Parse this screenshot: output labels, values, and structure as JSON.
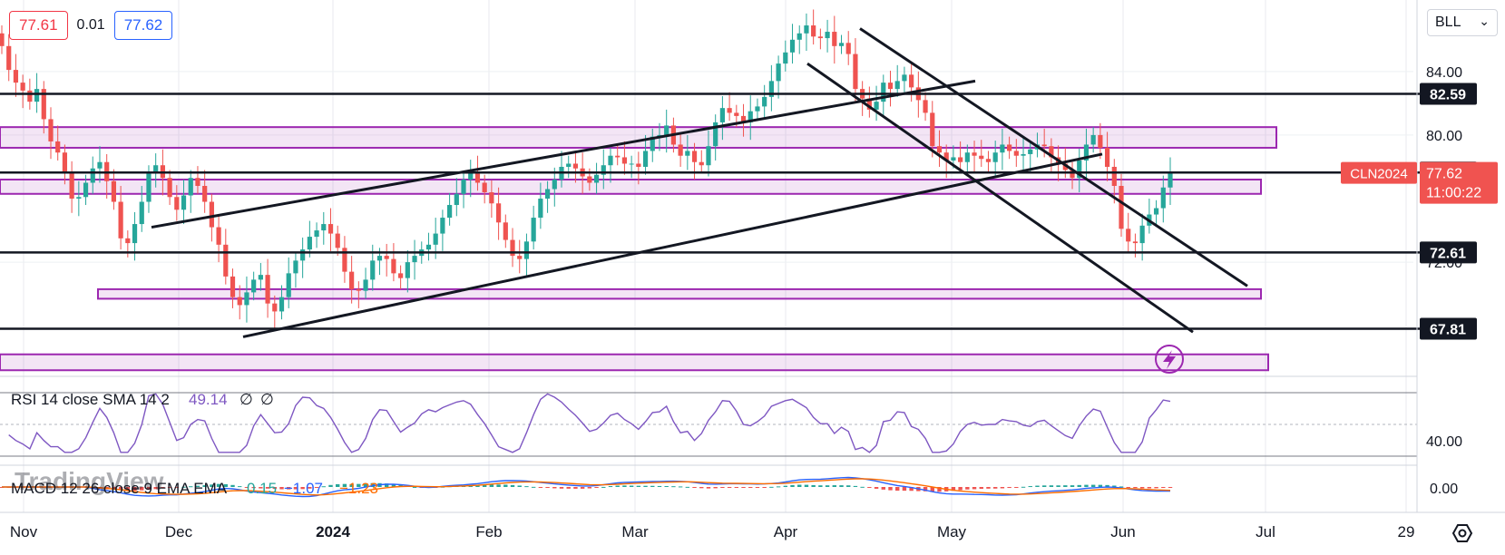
{
  "quote": {
    "bid": "77.61",
    "spread": "0.01",
    "ask": "77.62"
  },
  "symbol_selector": {
    "value": "BLL",
    "icon": "chevron-down-icon"
  },
  "colors": {
    "up": "#26a69a",
    "down": "#ef5350",
    "zone": "#9c27b0",
    "rsi": "#7e57c2",
    "price_tag": "#f05350",
    "macd": "#2962ff",
    "signal": "#ff6d00"
  },
  "chart_data": [
    {
      "type": "candlestick",
      "symbol": "CLN2024",
      "x_axis": {
        "ticks": [
          "Nov",
          "Dec",
          "2024",
          "Feb",
          "Mar",
          "Apr",
          "May",
          "Jun",
          "Jul",
          "29"
        ]
      },
      "y_axis": {
        "ticks": [
          "84.00",
          "80.00",
          "72.00"
        ],
        "ylim": [
          65.5,
          88.5
        ]
      },
      "grid": true,
      "ohlc_close": [
        85.6,
        84.1,
        83.3,
        82.8,
        82.1,
        82.9,
        81.0,
        79.6,
        78.9,
        77.6,
        76.0,
        76.1,
        77.0,
        77.9,
        78.3,
        77.1,
        75.8,
        73.5,
        73.2,
        74.4,
        75.8,
        77.6,
        78.1,
        77.3,
        76.1,
        75.3,
        76.2,
        77.3,
        76.8,
        75.8,
        74.2,
        73.1,
        71.1,
        69.8,
        69.3,
        70.1,
        70.9,
        71.2,
        69.4,
        68.9,
        69.8,
        71.3,
        72.1,
        72.8,
        73.6,
        74.0,
        74.4,
        73.8,
        72.9,
        71.4,
        70.3,
        70.2,
        70.9,
        72.1,
        72.4,
        72.2,
        71.3,
        71.0,
        72.0,
        72.4,
        72.8,
        73.1,
        73.8,
        74.8,
        75.6,
        76.3,
        77.2,
        77.7,
        77.0,
        76.4,
        75.7,
        74.5,
        73.4,
        72.4,
        72.2,
        73.3,
        74.8,
        76.0,
        76.6,
        77.2,
        78.0,
        78.2,
        77.9,
        77.4,
        77.0,
        77.5,
        78.1,
        78.7,
        78.6,
        78.2,
        78.2,
        78.0,
        79.0,
        79.9,
        80.0,
        80.6,
        79.4,
        78.7,
        79.0,
        78.3,
        78.1,
        79.3,
        80.8,
        81.7,
        81.4,
        81.2,
        80.8,
        81.5,
        81.8,
        82.4,
        83.4,
        84.5,
        85.2,
        86.0,
        86.4,
        86.9,
        86.2,
        86.1,
        86.5,
        85.6,
        85.8,
        85.1,
        82.9,
        82.3,
        81.6,
        82.1,
        83.3,
        82.9,
        83.4,
        83.8,
        83.0,
        82.2,
        81.4,
        79.3,
        78.9,
        78.4,
        78.6,
        78.3,
        78.9,
        78.7,
        78.5,
        78.3,
        78.9,
        79.4,
        79.0,
        78.7,
        78.8,
        79.1,
        79.4,
        79.3,
        78.6,
        78.2,
        77.8,
        77.3,
        78.4,
        79.4,
        80.0,
        79.2,
        78.0,
        76.8,
        74.1,
        73.3,
        73.2,
        74.3,
        75.0,
        75.4,
        76.7,
        77.6
      ],
      "horizontal_levels": [
        {
          "label": "82.59",
          "value": 82.59,
          "color": "#131722"
        },
        {
          "label": "77.64",
          "value": 77.64,
          "color": "#131722"
        },
        {
          "label": "72.61",
          "value": 72.61,
          "color": "#131722"
        },
        {
          "label": "67.81",
          "value": 67.81,
          "color": "#131722"
        }
      ],
      "last_price": {
        "symbol": "CLN2024",
        "value": "77.62",
        "countdown": "11:00:22"
      }
    },
    {
      "type": "line",
      "title": "RSI 14 close SMA 14 2",
      "values_shown": [
        "49.14",
        "∅",
        "∅"
      ],
      "y_axis": {
        "ticks": [
          "40.00"
        ]
      },
      "ylim": [
        25,
        75
      ]
    },
    {
      "type": "line",
      "title": "MACD 12 26 close 9 EMA EMA",
      "values_shown": [
        "0.15",
        "−1.07",
        "−1.23"
      ],
      "y_axis": {
        "ticks": [
          "0.00"
        ]
      }
    }
  ],
  "watermark": "TradingView",
  "alert_icon": "lightning-icon",
  "settings_icon": "gear-icon"
}
